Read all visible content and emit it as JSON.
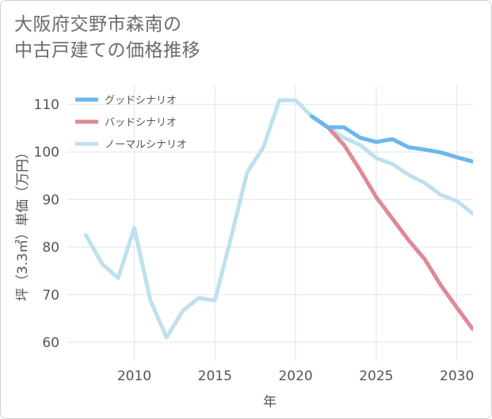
{
  "title": {
    "line1": "大阪府交野市森南の",
    "line2": "中古戸建ての価格推移"
  },
  "chart_data": {
    "type": "line",
    "xlabel": "年",
    "ylabel": "坪（3.3㎡）単価（万円）",
    "xlim": [
      2005.8,
      2031
    ],
    "ylim": [
      56,
      114
    ],
    "xticks": [
      2010,
      2015,
      2020,
      2025,
      2030
    ],
    "yticks": [
      60,
      70,
      80,
      90,
      100,
      110
    ],
    "grid": true,
    "legend_position": "top-left",
    "series": [
      {
        "name": "グッドシナリオ",
        "color": "#6bb6ec",
        "x": [
          2021,
          2022,
          2023,
          2024,
          2025,
          2026,
          2027,
          2028,
          2029,
          2030,
          2031
        ],
        "y": [
          107.5,
          105.2,
          105.2,
          103.0,
          102.1,
          102.7,
          101.0,
          100.5,
          99.9,
          98.9,
          98.0
        ]
      },
      {
        "name": "バッドシナリオ",
        "color": "#de8a96",
        "x": [
          2021,
          2022,
          2023,
          2024,
          2025,
          2026,
          2027,
          2028,
          2029,
          2030,
          2031
        ],
        "y": [
          107.5,
          105.2,
          101.5,
          96.2,
          90.5,
          86.0,
          81.5,
          77.5,
          72.0,
          67.3,
          62.7
        ]
      },
      {
        "name": "ノーマルシナリオ",
        "color": "#bfe1ee",
        "x": [
          2007,
          2008,
          2009,
          2010,
          2011,
          2012,
          2013,
          2014,
          2015,
          2016,
          2017,
          2018,
          2019,
          2020,
          2021,
          2022,
          2023,
          2024,
          2025,
          2026,
          2027,
          2028,
          2029,
          2030,
          2031
        ],
        "y": [
          82.5,
          76.5,
          73.5,
          84.0,
          68.8,
          61.0,
          66.6,
          69.3,
          68.8,
          82.0,
          95.7,
          101.0,
          110.9,
          110.9,
          107.5,
          105.2,
          103.0,
          101.5,
          98.7,
          97.5,
          95.2,
          93.5,
          91.0,
          89.7,
          87.0
        ]
      }
    ]
  }
}
